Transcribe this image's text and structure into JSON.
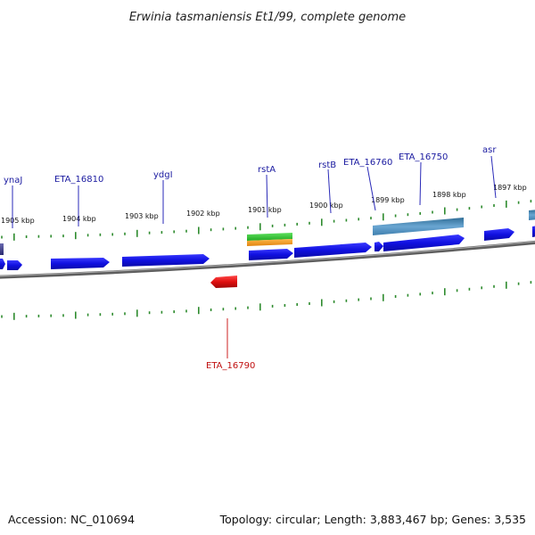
{
  "title": "Erwinia tasmaniensis Et1/99, complete genome",
  "footer": {
    "accession": "Accession: NC_010694",
    "summary": "Topology: circular; Length: 3,883,467 bp; Genes: 3,535"
  },
  "colors": {
    "forward_gene": "#1010e0",
    "reverse_gene": "#e01010",
    "rna_gene": "#4a86b4",
    "green_feature": "#33cc33",
    "orange_feature": "#f29a1e",
    "tick": "#2e8b2e",
    "backbone": "#7a7a7a",
    "label_forward": "#1a1aa0",
    "label_reverse": "#c01010"
  },
  "scale_labels": [
    "1905 kbp",
    "1904 kbp",
    "1903 kbp",
    "1902 kbp",
    "1901 kbp",
    "1900 kbp",
    "1899 kbp",
    "1898 kbp",
    "1897 kbp"
  ],
  "gene_labels": [
    {
      "name": "ynaJ",
      "strand": "forward"
    },
    {
      "name": "ETA_16810",
      "strand": "forward"
    },
    {
      "name": "ydgI",
      "strand": "forward"
    },
    {
      "name": "rstA",
      "strand": "forward"
    },
    {
      "name": "rstB",
      "strand": "forward"
    },
    {
      "name": "ETA_16760",
      "strand": "forward"
    },
    {
      "name": "ETA_16750",
      "strand": "forward"
    },
    {
      "name": "asr",
      "strand": "forward"
    },
    {
      "name": "ETA_16790",
      "strand": "reverse"
    }
  ]
}
